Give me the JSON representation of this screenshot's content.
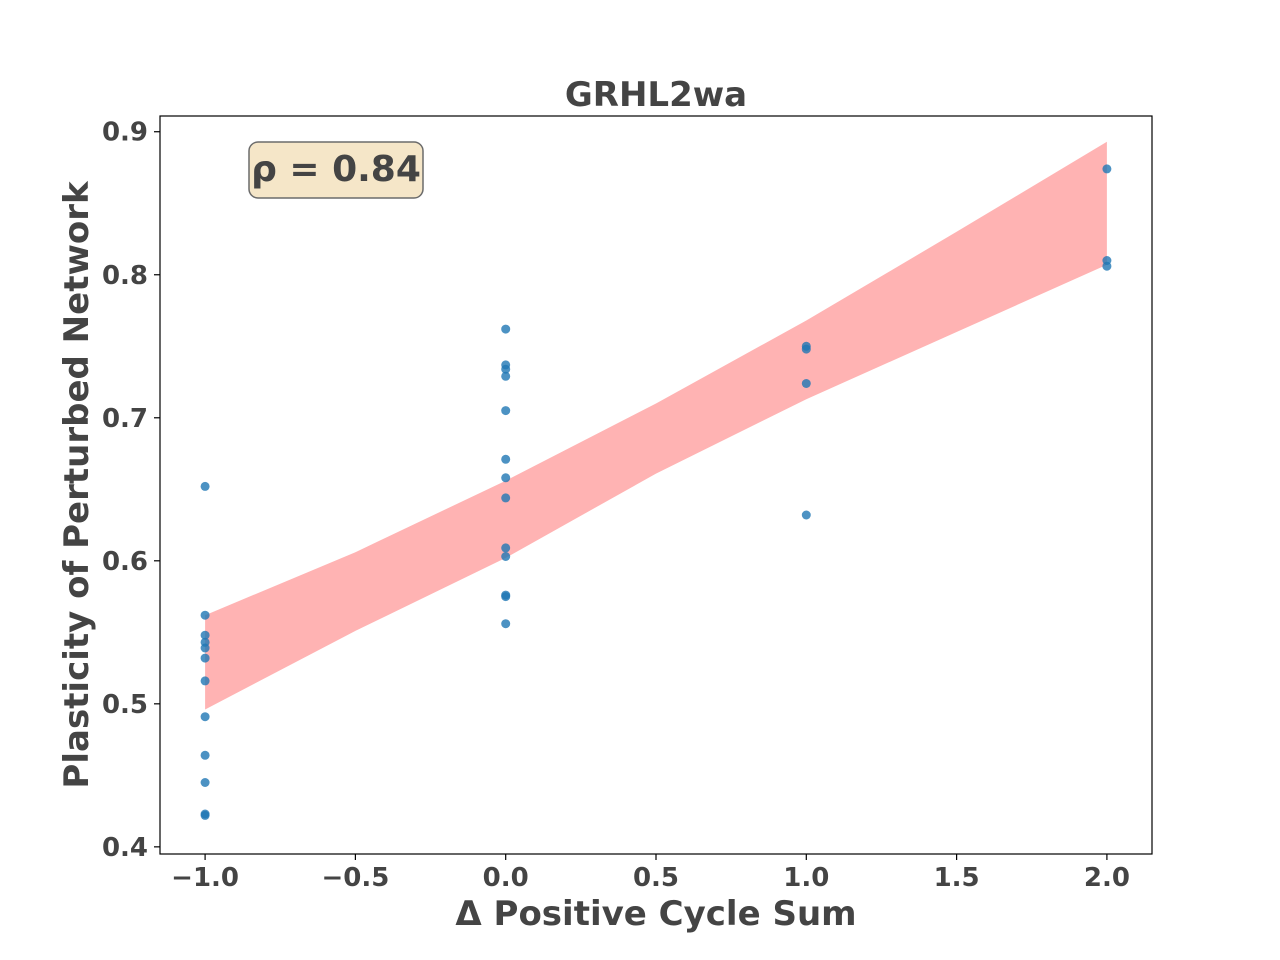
{
  "chart_data": {
    "type": "scatter",
    "title": "GRHL2wa",
    "xlabel": "Δ Positive Cycle Sum",
    "ylabel": "Plasticity of Perturbed Network",
    "xlim": [
      -1.15,
      2.15
    ],
    "ylim": [
      0.395,
      0.911
    ],
    "xticks": [
      -1.0,
      -0.5,
      0.0,
      0.5,
      1.0,
      1.5,
      2.0
    ],
    "xtick_labels": [
      "−1.0",
      "−0.5",
      "0.0",
      "0.5",
      "1.0",
      "1.5",
      "2.0"
    ],
    "yticks": [
      0.4,
      0.5,
      0.6,
      0.7,
      0.8,
      0.9
    ],
    "ytick_labels": [
      "0.4",
      "0.5",
      "0.6",
      "0.7",
      "0.8",
      "0.9"
    ],
    "annotation": "ρ = 0.84",
    "grid": false,
    "points": [
      {
        "x": -1,
        "y": 0.652
      },
      {
        "x": -1,
        "y": 0.562
      },
      {
        "x": -1,
        "y": 0.548
      },
      {
        "x": -1,
        "y": 0.543
      },
      {
        "x": -1,
        "y": 0.539
      },
      {
        "x": -1,
        "y": 0.532
      },
      {
        "x": -1,
        "y": 0.516
      },
      {
        "x": -1,
        "y": 0.491
      },
      {
        "x": -1,
        "y": 0.464
      },
      {
        "x": -1,
        "y": 0.445
      },
      {
        "x": -1,
        "y": 0.423
      },
      {
        "x": -1,
        "y": 0.422
      },
      {
        "x": 0,
        "y": 0.762
      },
      {
        "x": 0,
        "y": 0.737
      },
      {
        "x": 0,
        "y": 0.734
      },
      {
        "x": 0,
        "y": 0.729
      },
      {
        "x": 0,
        "y": 0.705
      },
      {
        "x": 0,
        "y": 0.671
      },
      {
        "x": 0,
        "y": 0.658
      },
      {
        "x": 0,
        "y": 0.644
      },
      {
        "x": 0,
        "y": 0.609
      },
      {
        "x": 0,
        "y": 0.603
      },
      {
        "x": 0,
        "y": 0.576
      },
      {
        "x": 0,
        "y": 0.575
      },
      {
        "x": 0,
        "y": 0.556
      },
      {
        "x": 1,
        "y": 0.75
      },
      {
        "x": 1,
        "y": 0.748
      },
      {
        "x": 1,
        "y": 0.724
      },
      {
        "x": 1,
        "y": 0.632
      },
      {
        "x": 2,
        "y": 0.874
      },
      {
        "x": 2,
        "y": 0.81
      },
      {
        "x": 2,
        "y": 0.806
      }
    ],
    "confidence_band": {
      "x": [
        -1.0,
        -0.5,
        0.0,
        0.5,
        1.0,
        1.5,
        2.0
      ],
      "upper": [
        0.562,
        0.606,
        0.656,
        0.71,
        0.768,
        0.83,
        0.893
      ],
      "lower": [
        0.496,
        0.551,
        0.602,
        0.661,
        0.713,
        0.76,
        0.807
      ]
    },
    "colors": {
      "points": "#1f77b4",
      "band": "#ff9999",
      "annotation_fill": "#f5e6c8",
      "annotation_edge": "#6b6b6b",
      "text": "#444444",
      "axes": "#000000"
    }
  }
}
